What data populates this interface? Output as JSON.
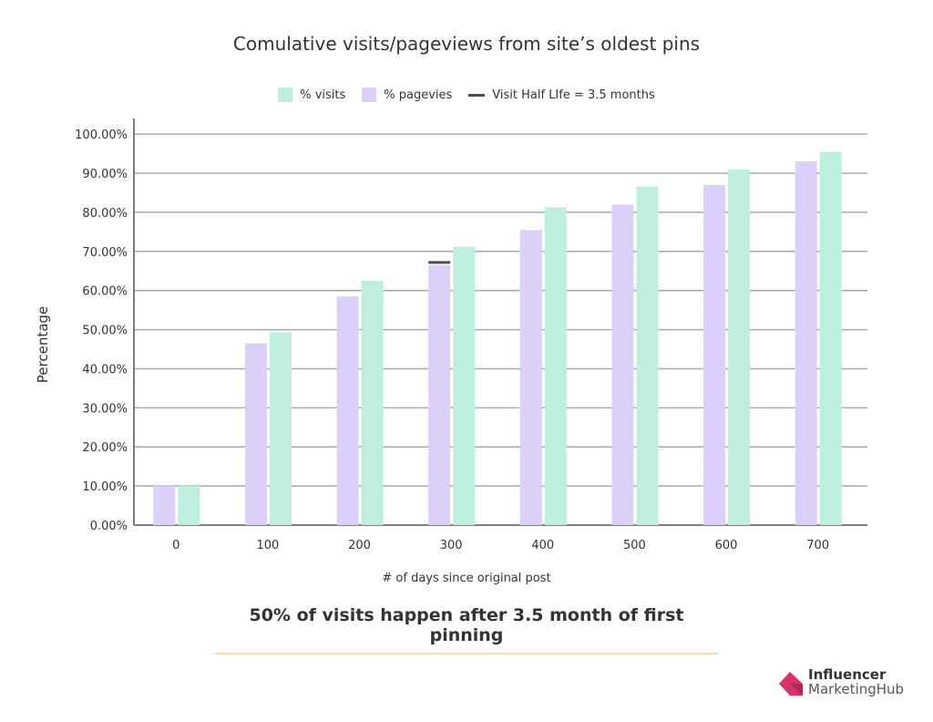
{
  "chart_data": {
    "type": "bar",
    "title": "Comulative visits/pageviews from site’s oldest pins",
    "xlabel": "# of days since original post",
    "ylabel": "Percentage",
    "categories": [
      "0",
      "100",
      "200",
      "300",
      "400",
      "500",
      "600",
      "700"
    ],
    "series": [
      {
        "name": "% pagevies",
        "color": "#dccffa",
        "values": [
          10.0,
          46.5,
          58.5,
          66.5,
          75.5,
          82.0,
          87.0,
          93.0
        ]
      },
      {
        "name": "% visits",
        "color": "#bdeede",
        "values": [
          10.0,
          49.3,
          62.5,
          71.2,
          81.3,
          86.6,
          91.0,
          95.5
        ]
      }
    ],
    "reference": {
      "name": "Visit Half LIfe = 3.5 months",
      "color": "#4a4a5a",
      "category": "300",
      "value": 67.2
    },
    "yticks": [
      "0.00%",
      "10.00%",
      "20.00%",
      "30.00%",
      "40.00%",
      "50.00%",
      "60.00%",
      "70.00%",
      "80.00%",
      "90.00%",
      "100.00%"
    ],
    "ylim": [
      0,
      104
    ],
    "grid": true,
    "legend": "top-center"
  },
  "footnote": "50% of visits happen after 3.5 month of first pinning",
  "logo": {
    "line1": "Influencer",
    "line2": "MarketingHub",
    "color": "#d6336c"
  }
}
